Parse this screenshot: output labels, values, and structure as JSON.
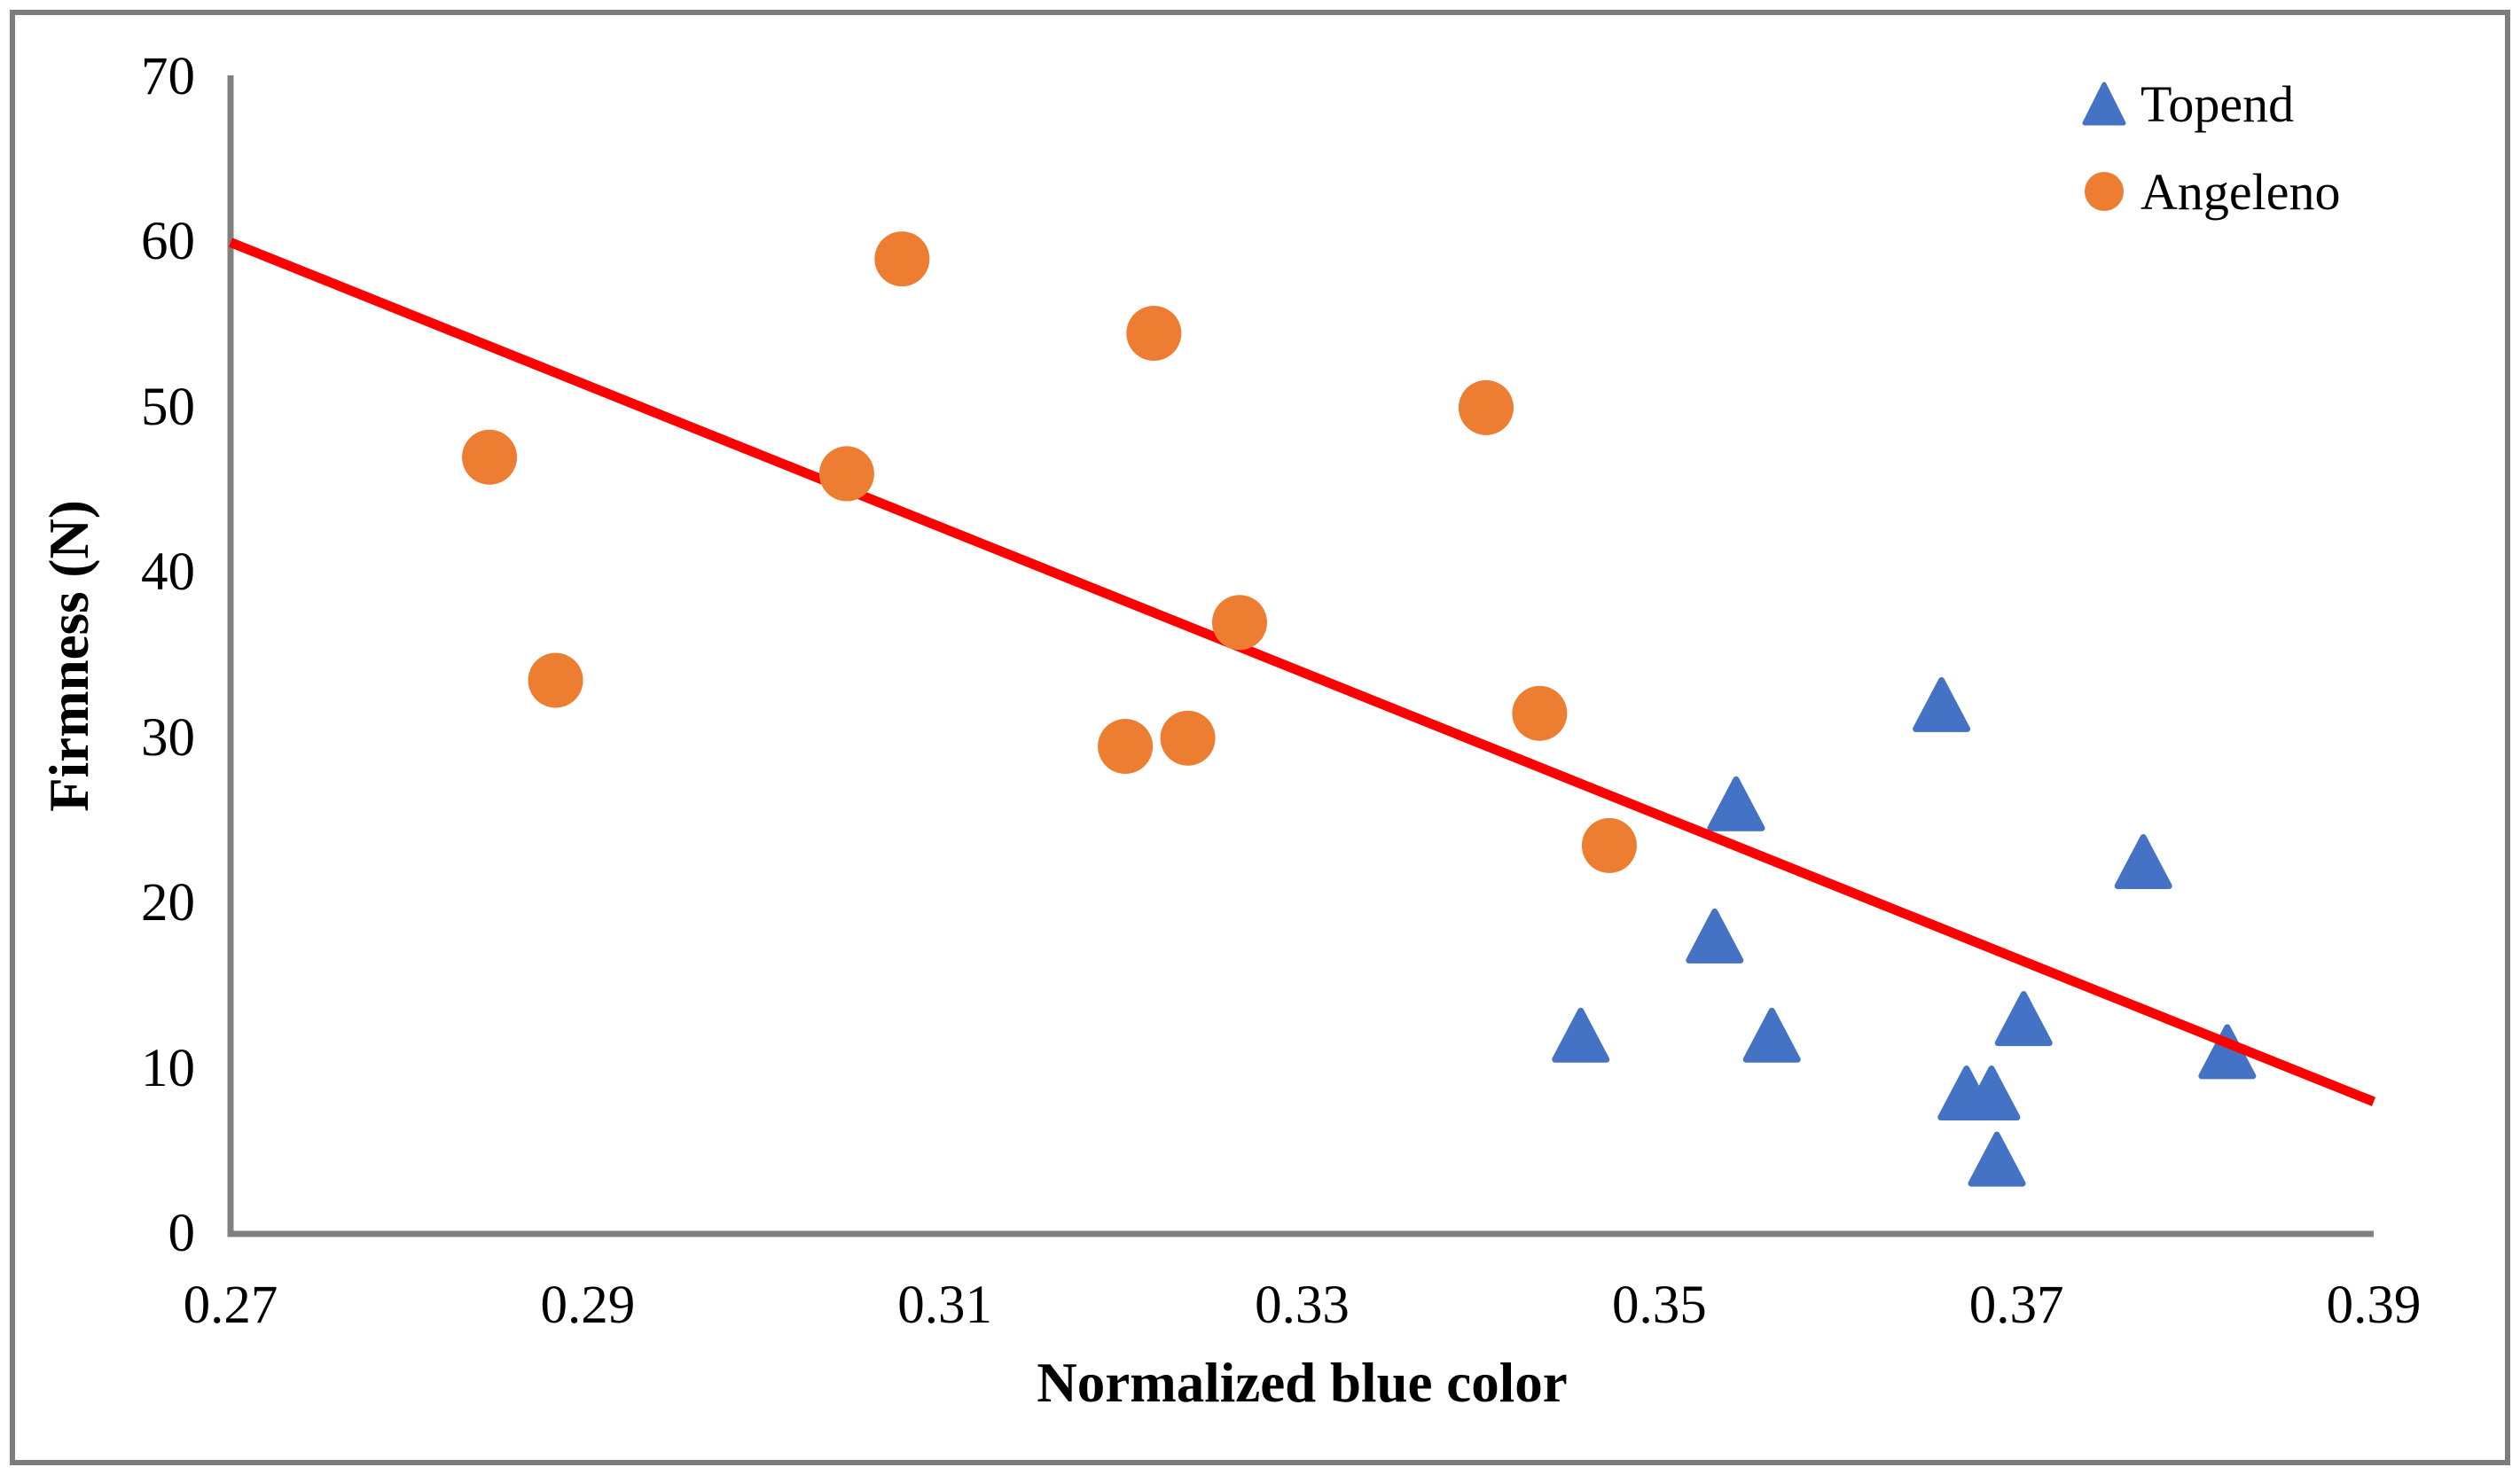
{
  "figure": {
    "background_color": "#ffffff",
    "frame_color": "#7d7d7d",
    "axis_line_color": "#808080"
  },
  "chart_data": {
    "type": "scatter",
    "title": "",
    "xlabel": "Normalized blue color",
    "ylabel": "Firmness (N)",
    "xlim": [
      0.27,
      0.39
    ],
    "ylim": [
      0,
      70
    ],
    "x_ticks": [
      "0.27",
      "0.29",
      "0.31",
      "0.33",
      "0.35",
      "0.37",
      "0.39"
    ],
    "y_ticks": [
      "0",
      "10",
      "20",
      "30",
      "40",
      "50",
      "60",
      "70"
    ],
    "grid": false,
    "legend_position": "top-right",
    "series": [
      {
        "name": "Topend",
        "marker": "triangle",
        "color": "#4472c4",
        "points": [
          [
            0.3456,
            12
          ],
          [
            0.3531,
            18
          ],
          [
            0.3543,
            26
          ],
          [
            0.3563,
            12
          ],
          [
            0.3658,
            32
          ],
          [
            0.3672,
            8.5
          ],
          [
            0.3686,
            8.5
          ],
          [
            0.3689,
            4.5
          ],
          [
            0.3704,
            13
          ],
          [
            0.3771,
            22.5
          ],
          [
            0.3818,
            11
          ]
        ]
      },
      {
        "name": "Angeleno",
        "marker": "circle",
        "color": "#ed7d31",
        "points": [
          [
            0.2845,
            47
          ],
          [
            0.2882,
            33.5
          ],
          [
            0.3045,
            46
          ],
          [
            0.3076,
            59
          ],
          [
            0.3201,
            29.5
          ],
          [
            0.3217,
            54.5
          ],
          [
            0.3236,
            30
          ],
          [
            0.3265,
            37
          ],
          [
            0.3403,
            50
          ],
          [
            0.3433,
            31.5
          ],
          [
            0.3472,
            23.5
          ]
        ]
      }
    ],
    "trendline": {
      "color": "#ff0000",
      "x1": 0.27,
      "y1": 60,
      "x2": 0.39,
      "y2": 8
    }
  }
}
